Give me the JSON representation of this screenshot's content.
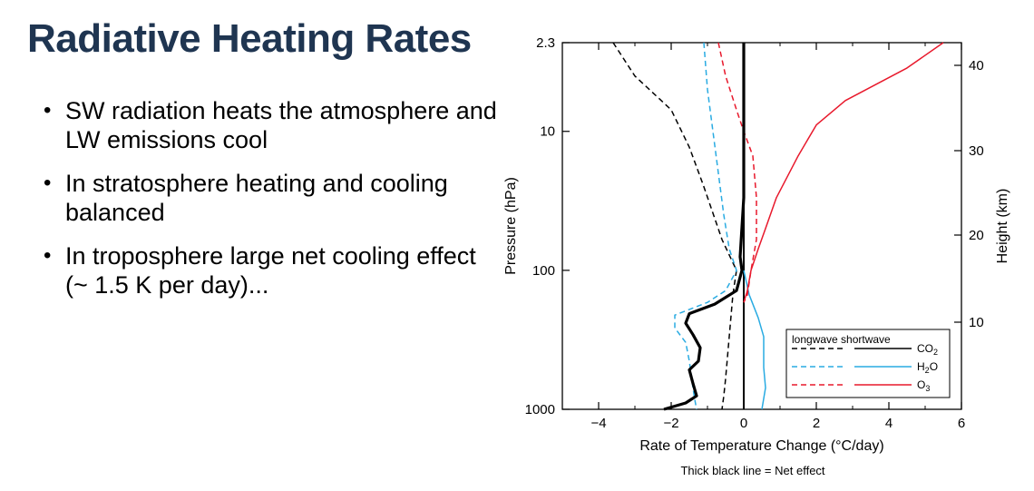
{
  "slide": {
    "title": "Radiative Heating Rates",
    "bullet_marker": "•",
    "bullets": [
      "SW radiation heats the atmosphere and LW emissions cool",
      "In stratosphere heating and cooling balanced",
      "In troposphere large net cooling effect (~ 1.5 K per day)..."
    ]
  },
  "chart_data": {
    "type": "line",
    "title": "",
    "xlabel": "Rate of Temperature Change (°C/day)",
    "ylabel": "Pressure (hPa)",
    "y2label": "Height (km)",
    "caption": "Thick black line = Net effect",
    "xlim": [
      -5,
      6
    ],
    "ylim": [
      2.3,
      1000
    ],
    "y_scale": "log",
    "y_inverted": true,
    "x_ticks": [
      -4,
      -2,
      0,
      2,
      4,
      6
    ],
    "x_tick_labels": [
      "−4",
      "−2",
      "0",
      "2",
      "4",
      "6"
    ],
    "y_ticks": [
      2.3,
      10,
      100,
      1000
    ],
    "y_tick_labels": [
      "2.3",
      "10",
      "100",
      "1000"
    ],
    "height_ticks_km": [
      10,
      20,
      30,
      40
    ],
    "legend": {
      "header": "longwave shortwave",
      "position": "bottom-right",
      "rows": [
        {
          "gas": "CO",
          "sub": "2",
          "color": "#000000"
        },
        {
          "gas": "H",
          "sub": "2",
          "suffix": "O",
          "color": "#29abe2"
        },
        {
          "gas": "O",
          "sub": "3",
          "color": "#e8192c"
        }
      ]
    },
    "colors": {
      "co2": "#000000",
      "h2o": "#29abe2",
      "o3": "#e8192c",
      "net": "#000000"
    },
    "series": [
      {
        "gas": "CO2",
        "type": "longwave",
        "style": "dashed",
        "color": "#000000",
        "points": [
          [
            -3.6,
            2.3
          ],
          [
            -3.0,
            4
          ],
          [
            -2.0,
            7
          ],
          [
            -1.5,
            13
          ],
          [
            -1.1,
            25
          ],
          [
            -0.6,
            60
          ],
          [
            -0.2,
            100
          ],
          [
            -0.3,
            150
          ],
          [
            -0.4,
            300
          ],
          [
            -0.5,
            600
          ],
          [
            -0.55,
            800
          ],
          [
            -0.6,
            1000
          ]
        ]
      },
      {
        "gas": "CO2",
        "type": "shortwave",
        "style": "solid",
        "color": "#000000",
        "points": [
          [
            0,
            2.3
          ],
          [
            0,
            1000
          ]
        ]
      },
      {
        "gas": "H2O",
        "type": "longwave",
        "style": "dashed",
        "color": "#29abe2",
        "points": [
          [
            -1.1,
            2.3
          ],
          [
            -1.0,
            5
          ],
          [
            -0.85,
            10
          ],
          [
            -0.7,
            20
          ],
          [
            -0.55,
            40
          ],
          [
            -0.4,
            70
          ],
          [
            -0.2,
            100
          ],
          [
            -0.5,
            140
          ],
          [
            -1.0,
            170
          ],
          [
            -1.9,
            210
          ],
          [
            -1.9,
            260
          ],
          [
            -1.6,
            330
          ],
          [
            -1.5,
            450
          ],
          [
            -1.4,
            700
          ],
          [
            -1.35,
            850
          ],
          [
            -1.3,
            1000
          ]
        ]
      },
      {
        "gas": "H2O",
        "type": "shortwave",
        "style": "solid",
        "color": "#29abe2",
        "points": [
          [
            0,
            100
          ],
          [
            0.15,
            150
          ],
          [
            0.4,
            220
          ],
          [
            0.55,
            300
          ],
          [
            0.55,
            500
          ],
          [
            0.6,
            700
          ],
          [
            0.5,
            1000
          ]
        ]
      },
      {
        "gas": "O3",
        "type": "longwave",
        "style": "dashed",
        "color": "#e8192c",
        "points": [
          [
            -0.7,
            2.3
          ],
          [
            -0.5,
            4
          ],
          [
            -0.2,
            7
          ],
          [
            0,
            10
          ],
          [
            0.25,
            15
          ],
          [
            0.35,
            30
          ],
          [
            0.35,
            60
          ],
          [
            0.2,
            100
          ],
          [
            0.1,
            150
          ],
          [
            0,
            170
          ]
        ]
      },
      {
        "gas": "O3",
        "type": "shortwave",
        "style": "solid",
        "color": "#e8192c",
        "points": [
          [
            5.5,
            2.3
          ],
          [
            4.5,
            3.5
          ],
          [
            2.8,
            6
          ],
          [
            2,
            9
          ],
          [
            1.5,
            15
          ],
          [
            0.9,
            30
          ],
          [
            0.6,
            50
          ],
          [
            0.4,
            70
          ],
          [
            0.2,
            100
          ],
          [
            0.1,
            140
          ],
          [
            0,
            170
          ]
        ]
      },
      {
        "gas": "Net",
        "type": "net",
        "style": "thick",
        "color": "#000000",
        "points": [
          [
            0,
            2.3
          ],
          [
            0,
            30
          ],
          [
            -0.1,
            80
          ],
          [
            -0.05,
            100
          ],
          [
            -0.2,
            140
          ],
          [
            -0.8,
            175
          ],
          [
            -1.5,
            205
          ],
          [
            -1.6,
            240
          ],
          [
            -1.4,
            290
          ],
          [
            -1.2,
            360
          ],
          [
            -1.25,
            450
          ],
          [
            -1.5,
            520
          ],
          [
            -1.4,
            650
          ],
          [
            -1.3,
            800
          ],
          [
            -1.6,
            900
          ],
          [
            -2.2,
            1000
          ]
        ]
      }
    ]
  }
}
